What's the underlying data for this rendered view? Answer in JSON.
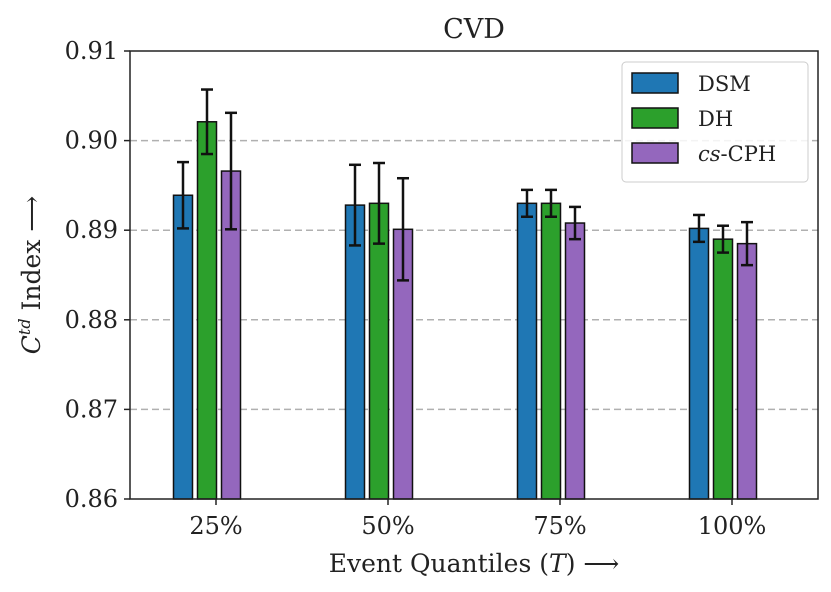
{
  "chart_data": {
    "type": "bar",
    "title": "CVD",
    "xlabel": {
      "prefix": "Event Quantiles (",
      "var": "T",
      "suffix": ") ⟶"
    },
    "ylabel": {
      "base": "C",
      "sup": "td",
      "rest": " Index ⟶"
    },
    "categories": [
      "25%",
      "50%",
      "75%",
      "100%"
    ],
    "ylim": [
      0.86,
      0.91
    ],
    "yticks": [
      0.86,
      0.87,
      0.88,
      0.89,
      0.9,
      0.91
    ],
    "ytick_labels": [
      "0.86",
      "0.87",
      "0.88",
      "0.89",
      "0.90",
      "0.91"
    ],
    "grid": "dashed-horizontal",
    "legend_position": "top-right",
    "series": [
      {
        "name": "DSM",
        "name_parts": [
          "",
          "DSM"
        ],
        "color": "#1f77b4",
        "values": [
          0.8939,
          0.8928,
          0.893,
          0.8902
        ],
        "errors": [
          0.0037,
          0.0045,
          0.0015,
          0.0015
        ]
      },
      {
        "name": "DH",
        "name_parts": [
          "",
          "DH"
        ],
        "color": "#2ca02c",
        "values": [
          0.9021,
          0.893,
          0.893,
          0.889
        ],
        "errors": [
          0.0036,
          0.0045,
          0.0015,
          0.0015
        ]
      },
      {
        "name": "cs-CPH",
        "name_parts": [
          "cs",
          "-CPH"
        ],
        "color": "#9467bd",
        "values": [
          0.8966,
          0.8901,
          0.8908,
          0.8885
        ],
        "errors": [
          0.0065,
          0.0057,
          0.0018,
          0.0024
        ]
      }
    ]
  }
}
